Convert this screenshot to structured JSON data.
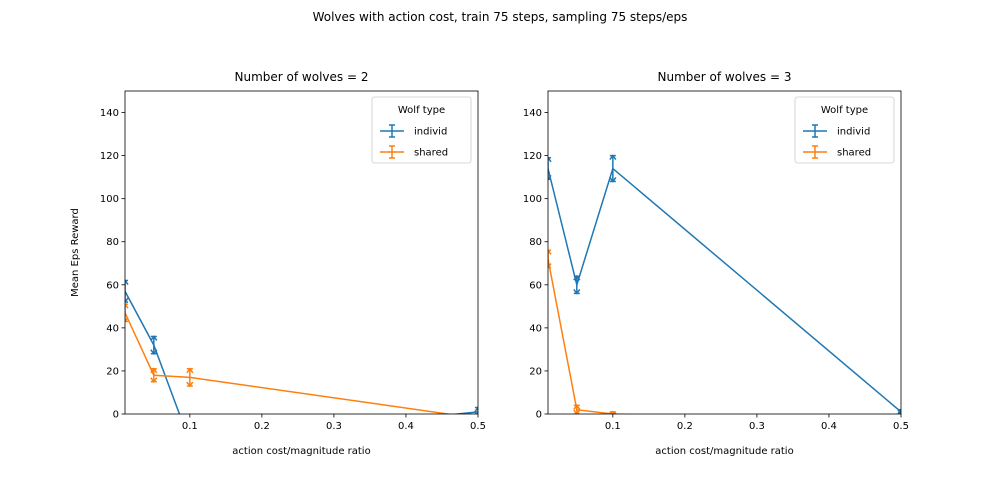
{
  "figure": {
    "suptitle": "Wolves with action cost, train 75 steps, sampling 75 steps/eps"
  },
  "chart_data": [
    {
      "type": "line",
      "title": "Number of wolves = 2",
      "xlabel": "action cost/magnitude ratio",
      "ylabel": "Mean Eps Reward",
      "xlim": [
        0.01,
        0.5
      ],
      "ylim": [
        0,
        150
      ],
      "xticks": [
        0.1,
        0.2,
        0.3,
        0.4,
        0.5
      ],
      "xtick_labels": [
        "0.1",
        "0.2",
        "0.3",
        "0.4",
        "0.5"
      ],
      "yticks": [
        0,
        20,
        40,
        60,
        80,
        100,
        120,
        140
      ],
      "ytick_labels": [
        "0",
        "20",
        "40",
        "60",
        "80",
        "100",
        "120",
        "140"
      ],
      "legend": {
        "title": "Wolf type",
        "position": "upper-right"
      },
      "series": [
        {
          "name": "individ",
          "color": "#1f77b4",
          "x": [
            0.01,
            0.05,
            0.1,
            0.5
          ],
          "y": [
            57,
            32,
            -13,
            1
          ],
          "err": [
            5,
            4,
            4,
            2
          ]
        },
        {
          "name": "shared",
          "color": "#ff7f0e",
          "x": [
            0.01,
            0.05,
            0.1,
            0.5
          ],
          "y": [
            47,
            18,
            17,
            -2
          ],
          "err": [
            4,
            3,
            4,
            2
          ]
        }
      ]
    },
    {
      "type": "line",
      "title": "Number of wolves = 3",
      "xlabel": "action cost/magnitude ratio",
      "ylabel": "",
      "xlim": [
        0.01,
        0.5
      ],
      "ylim": [
        0,
        150
      ],
      "xticks": [
        0.1,
        0.2,
        0.3,
        0.4,
        0.5
      ],
      "xtick_labels": [
        "0.1",
        "0.2",
        "0.3",
        "0.4",
        "0.5"
      ],
      "yticks": [
        0,
        20,
        40,
        60,
        80,
        100,
        120,
        140
      ],
      "ytick_labels": [
        "0",
        "20",
        "40",
        "60",
        "80",
        "100",
        "120",
        "140"
      ],
      "legend": {
        "title": "Wolf type",
        "position": "upper-right"
      },
      "series": [
        {
          "name": "individ",
          "color": "#1f77b4",
          "x": [
            0.01,
            0.05,
            0.1,
            0.5
          ],
          "y": [
            114,
            60,
            114,
            1
          ],
          "err": [
            5,
            4,
            6,
            1
          ]
        },
        {
          "name": "shared",
          "color": "#ff7f0e",
          "x": [
            0.01,
            0.05,
            0.1,
            0.5
          ],
          "y": [
            72,
            2,
            0,
            -5
          ],
          "err": [
            4,
            2,
            1,
            1
          ]
        }
      ]
    }
  ]
}
